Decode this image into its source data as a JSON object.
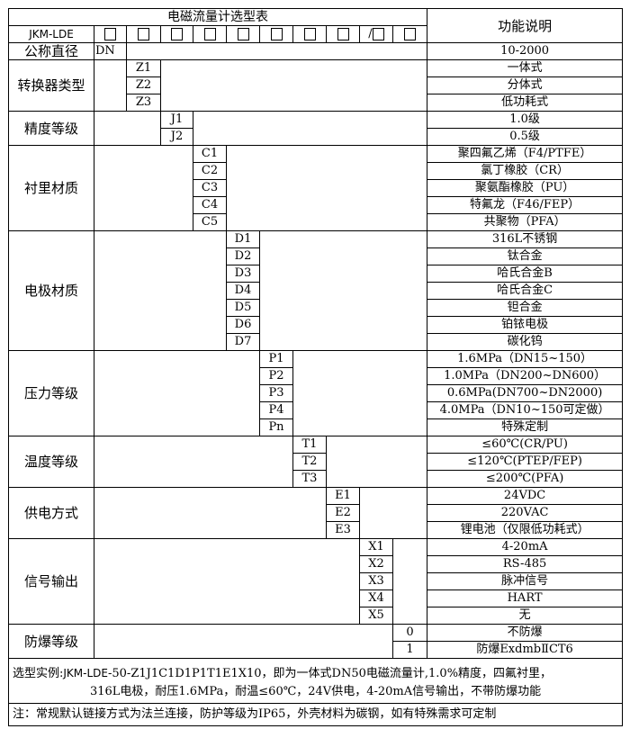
{
  "header": {
    "title": "电磁流量计选型表",
    "function_col": "功能说明",
    "model_prefix": "JKM-LDE",
    "slash": "/"
  },
  "groups": [
    {
      "label": "公称直径",
      "col": 1,
      "codes": [
        "DN"
      ],
      "descs": [
        "10-2000"
      ]
    },
    {
      "label": "转换器类型",
      "col": 2,
      "codes": [
        "Z1",
        "Z2",
        "Z3"
      ],
      "descs": [
        "一体式",
        "分体式",
        "低功耗式"
      ]
    },
    {
      "label": "精度等级",
      "col": 3,
      "codes": [
        "J1",
        "J2"
      ],
      "descs": [
        "1.0级",
        "0.5级"
      ]
    },
    {
      "label": "衬里材质",
      "col": 4,
      "codes": [
        "C1",
        "C2",
        "C3",
        "C4",
        "C5"
      ],
      "descs": [
        "聚四氟乙烯（F4/PTFE）",
        "氯丁橡胶（CR）",
        "聚氨酯橡胶（PU）",
        "特氟龙（F46/FEP）",
        "共聚物（PFA）"
      ]
    },
    {
      "label": "电极材质",
      "col": 5,
      "codes": [
        "D1",
        "D2",
        "D3",
        "D4",
        "D5",
        "D6",
        "D7"
      ],
      "descs": [
        "316L不锈钢",
        "钛合金",
        "哈氏合金B",
        "哈氏合金C",
        "钽合金",
        "铂铱电极",
        "碳化钨"
      ]
    },
    {
      "label": "压力等级",
      "col": 6,
      "codes": [
        "P1",
        "P2",
        "P3",
        "P4",
        "Pn"
      ],
      "descs": [
        "1.6MPa（DN15~150）",
        "1.0MPa（DN200~DN600）",
        "0.6MPa(DN700~DN2000)",
        "4.0MPa（DN10~150可定做）",
        "特殊定制"
      ]
    },
    {
      "label": "温度等级",
      "col": 7,
      "codes": [
        "T1",
        "T2",
        "T3"
      ],
      "descs": [
        "≤60℃(CR/PU)",
        "≤120℃(PTEP/FEP)",
        "≤200℃(PFA)"
      ]
    },
    {
      "label": "供电方式",
      "col": 8,
      "codes": [
        "E1",
        "E2",
        "E3"
      ],
      "descs": [
        "24VDC",
        "220VAC",
        "锂电池（仅限低功耗式）"
      ]
    },
    {
      "label": "信号输出",
      "col": 9,
      "codes": [
        "X1",
        "X2",
        "X3",
        "X4",
        "X5"
      ],
      "descs": [
        "4-20mA",
        "RS-485",
        "脉冲信号",
        "HART",
        "无"
      ]
    },
    {
      "label": "防爆等级",
      "col": 10,
      "codes": [
        "0",
        "1"
      ],
      "descs": [
        "不防爆",
        "防爆ExdmbⅡCT6"
      ]
    }
  ],
  "notes": {
    "example_prefix": "选型实例:",
    "example_model": "JKM-LDE",
    "example_line1": "-50-Z1J1C1D1P1T1E1X10，即为一体式DN50电磁流量计,1.0%精度，四氟衬里，",
    "example_line2": "316L电极，耐压1.6MPa，耐温≤60℃，24V供电，4-20mA信号输出，不带防爆功能",
    "remark": "注：常规默认链接方式为法兰连接，防护等级为IP65，外壳材料为碳钢，如有特殊需求可定制"
  }
}
